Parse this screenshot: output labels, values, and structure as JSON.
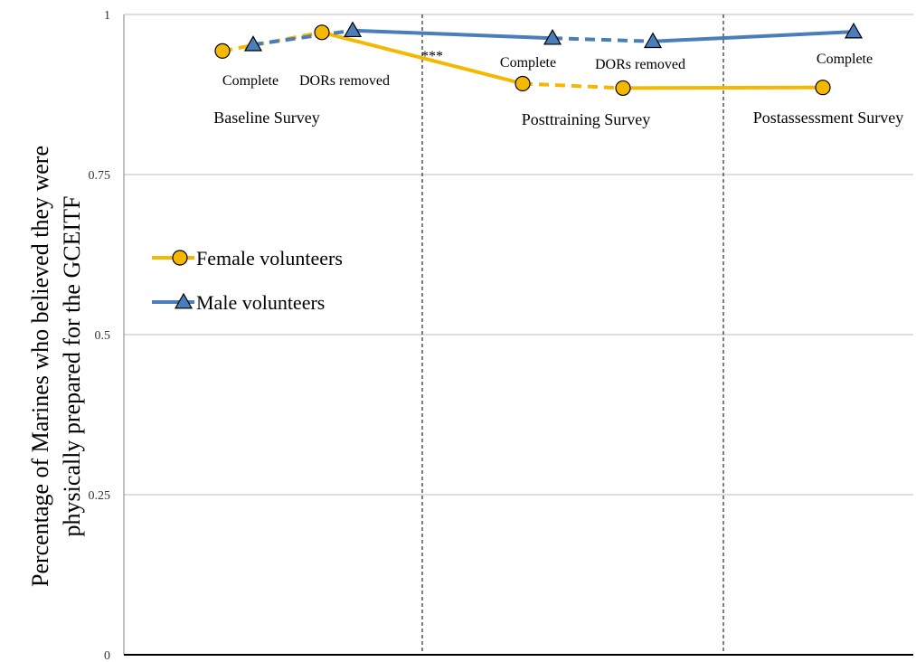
{
  "chart_data": {
    "type": "line",
    "title": "",
    "ylabel_lines": [
      "Percentage of Marines who believed they were",
      "physically prepared for the GCEITF"
    ],
    "xlabel": "",
    "ylim": [
      0,
      1
    ],
    "yticks": [
      {
        "value": 0,
        "label": "0"
      },
      {
        "value": 0.25,
        "label": "0.25"
      },
      {
        "value": 0.5,
        "label": "0.5"
      },
      {
        "value": 0.75,
        "label": "0.75"
      },
      {
        "value": 1,
        "label": "1"
      }
    ],
    "grid": true,
    "legend_position": "left",
    "sections": [
      "Baseline Survey",
      "Posttraining Survey",
      "Postassessment Survey"
    ],
    "point_labels": [
      "Complete",
      "DORs removed",
      "Complete",
      "DORs removed",
      "Complete"
    ],
    "significance_marker": "***",
    "series": [
      {
        "name": "Female volunteers",
        "color": "#f5b800",
        "marker": "circle-icon",
        "points": [
          {
            "x": 1,
            "y": 0.943
          },
          {
            "x": 2,
            "y": 0.972
          },
          {
            "x": 3,
            "y": 0.892
          },
          {
            "x": 4,
            "y": 0.885
          },
          {
            "x": 5,
            "y": 0.886
          }
        ],
        "dashed_segments": [
          0,
          2
        ]
      },
      {
        "name": "Male volunteers",
        "color": "#4a7ebb",
        "marker": "triangle-icon",
        "points": [
          {
            "x": 1,
            "y": 0.953
          },
          {
            "x": 2,
            "y": 0.975
          },
          {
            "x": 3,
            "y": 0.963
          },
          {
            "x": 4,
            "y": 0.958
          },
          {
            "x": 5,
            "y": 0.973
          }
        ],
        "dashed_segments": [
          0,
          2
        ]
      }
    ]
  }
}
